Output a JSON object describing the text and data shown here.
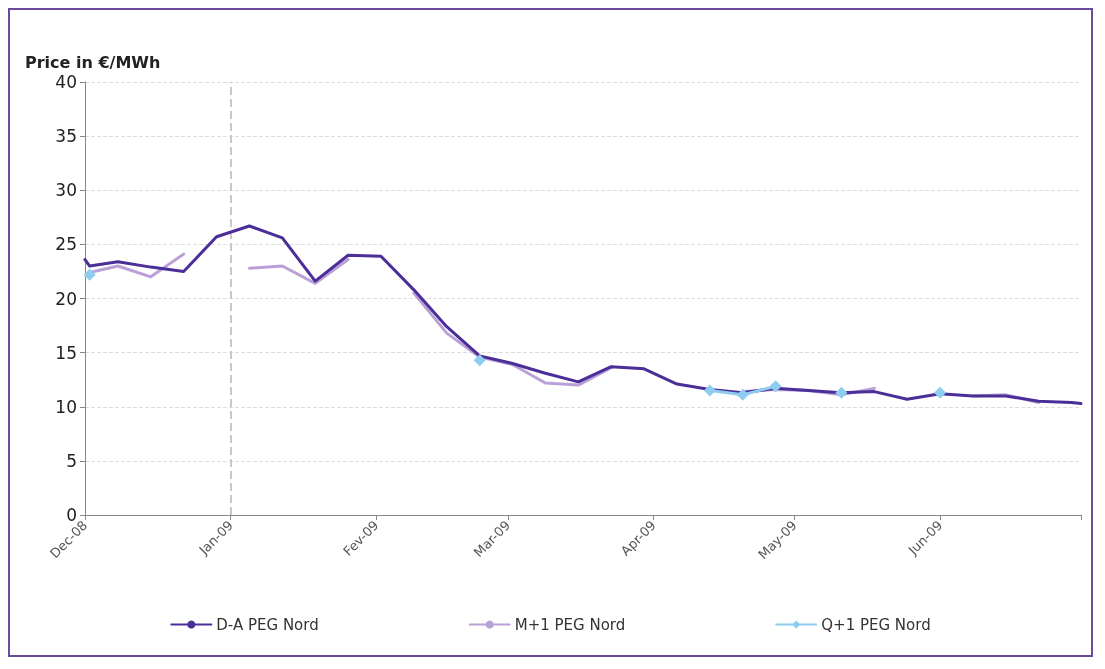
{
  "chart_data": {
    "type": "line",
    "ylabel": "Price in €/MWh",
    "x": [
      "2008-12-01",
      "2008-12-02",
      "2008-12-08",
      "2008-12-15",
      "2008-12-22",
      "2008-12-29",
      "2009-01-05",
      "2009-01-12",
      "2009-01-19",
      "2009-01-26",
      "2009-02-02",
      "2009-02-09",
      "2009-02-16",
      "2009-02-23",
      "2009-03-02",
      "2009-03-09",
      "2009-03-16",
      "2009-03-23",
      "2009-03-30",
      "2009-04-06",
      "2009-04-13",
      "2009-04-20",
      "2009-04-27",
      "2009-05-04",
      "2009-05-11",
      "2009-05-18",
      "2009-05-25",
      "2009-06-01",
      "2009-06-08",
      "2009-06-15",
      "2009-06-22",
      "2009-06-29",
      "2009-07-01"
    ],
    "series": [
      {
        "name": "D-A PEG Nord",
        "color": "#4b2e98",
        "marker": "none",
        "values": [
          23.6,
          23.0,
          23.4,
          22.9,
          22.5,
          25.7,
          26.7,
          25.6,
          21.6,
          24.0,
          23.9,
          20.8,
          17.4,
          14.7,
          14.0,
          13.1,
          12.3,
          13.7,
          13.5,
          12.1,
          11.6,
          11.3,
          11.7,
          11.5,
          11.3,
          11.4,
          10.7,
          11.2,
          11.0,
          11.0,
          10.5,
          10.4,
          10.3
        ]
      },
      {
        "name": "M+1 PEG Nord",
        "color": "#b9a0d6",
        "marker": "none",
        "values": [
          null,
          22.4,
          23.0,
          22.0,
          24.1,
          null,
          22.8,
          23.0,
          21.4,
          23.6,
          null,
          20.5,
          16.8,
          14.6,
          13.9,
          12.2,
          12.0,
          13.6,
          null,
          null,
          null,
          11.4,
          11.6,
          11.5,
          11.1,
          11.7,
          null,
          null,
          11.0,
          11.1,
          10.4,
          null,
          null
        ]
      },
      {
        "name": "Q+1 PEG Nord",
        "color": "#8ecdf0",
        "marker": "diamond",
        "values": [
          null,
          22.2,
          null,
          null,
          null,
          null,
          null,
          null,
          null,
          null,
          null,
          null,
          null,
          14.3,
          null,
          null,
          null,
          null,
          null,
          null,
          11.5,
          11.1,
          11.9,
          null,
          11.3,
          null,
          null,
          11.3,
          null,
          null,
          null,
          null,
          null
        ]
      }
    ],
    "ylim": [
      0,
      40
    ],
    "yticks": [
      0,
      5,
      10,
      15,
      20,
      25,
      30,
      35,
      40
    ],
    "xlim": [
      "2008-12-01",
      "2009-07-01"
    ],
    "xticks": [
      {
        "value": "2008-12-01",
        "label": "Dec-08"
      },
      {
        "value": "2009-01-01",
        "label": "Jan-09"
      },
      {
        "value": "2009-02-01",
        "label": "Fev-09"
      },
      {
        "value": "2009-03-01",
        "label": "Mar-09"
      },
      {
        "value": "2009-04-01",
        "label": "Apr-09"
      },
      {
        "value": "2009-05-01",
        "label": "May-09"
      },
      {
        "value": "2009-06-01",
        "label": "Jun-09"
      },
      {
        "value": "2009-07-01",
        "label": null
      }
    ],
    "ref_lines": [
      {
        "axis": "x",
        "value": "2009-01-01",
        "color": "#c8c8c8",
        "line_style": "dashed"
      }
    ],
    "grid": "y",
    "legend": "bottom",
    "line_style": "solid"
  }
}
